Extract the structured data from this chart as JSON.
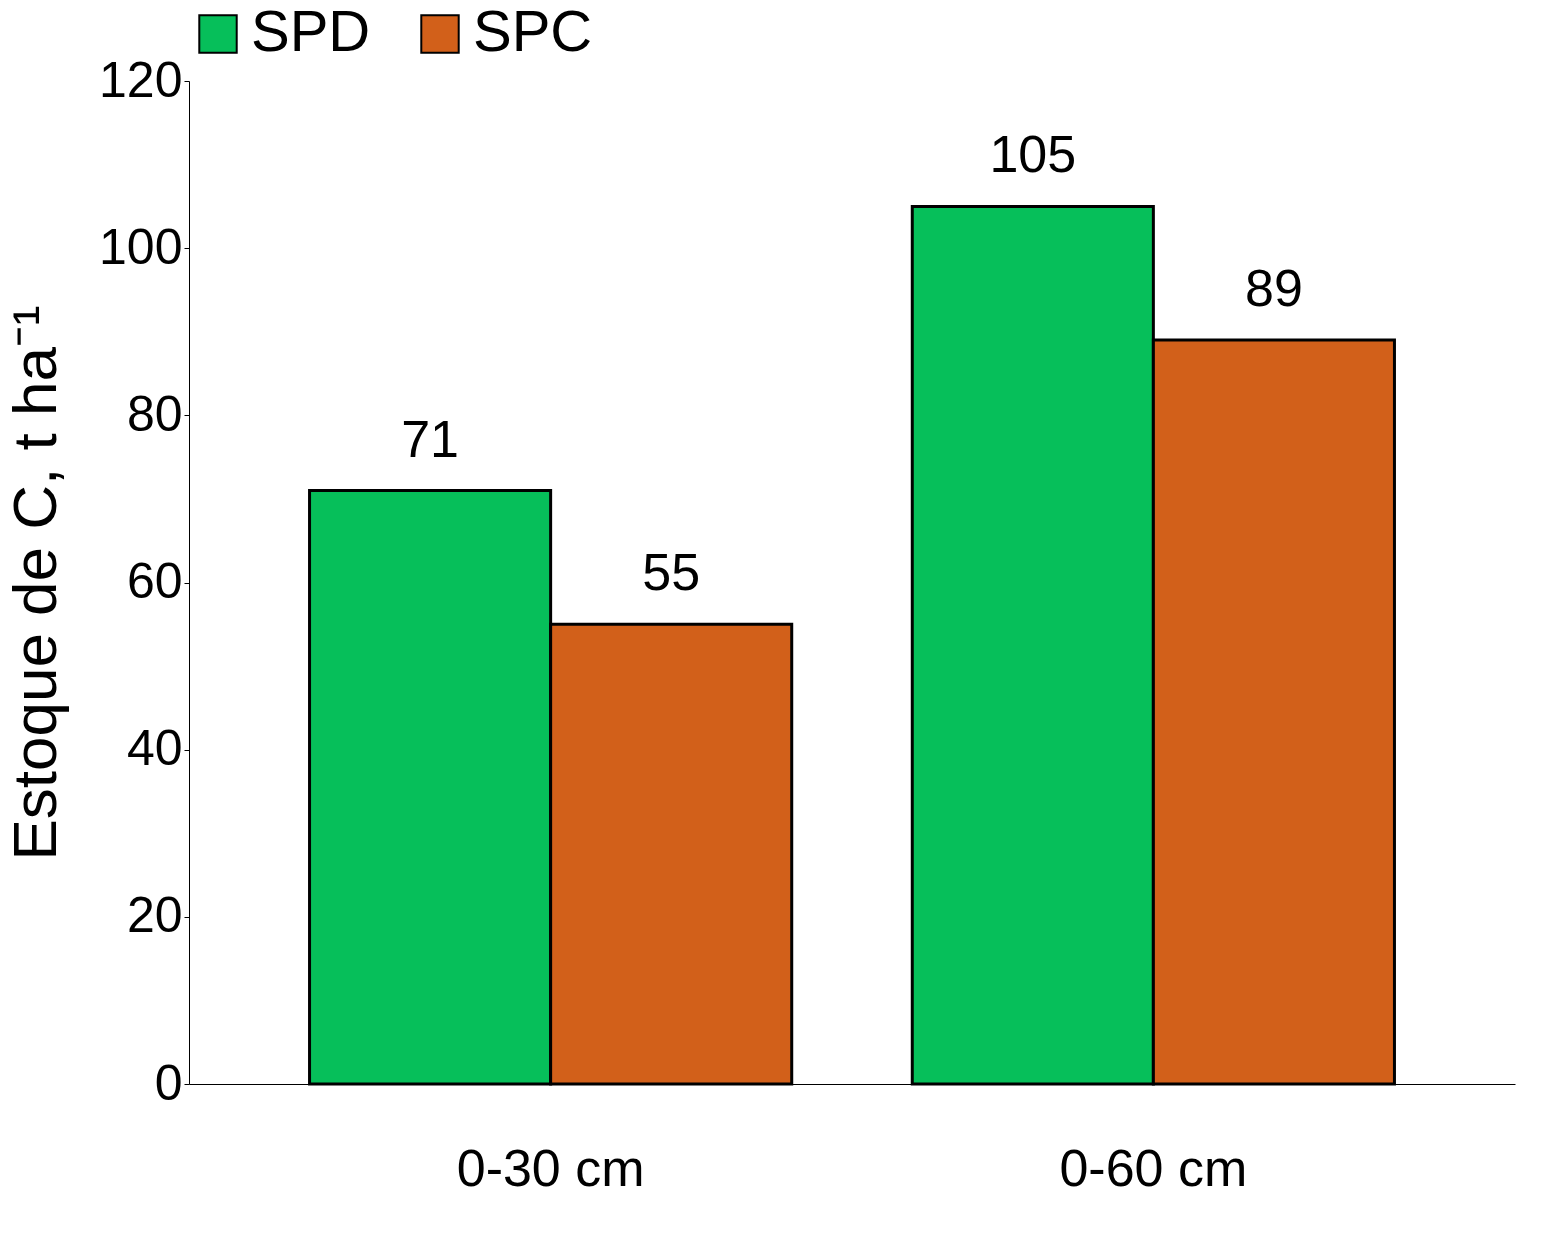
{
  "chart_data": {
    "type": "bar",
    "ylabel": "Estoque de C, t ha⁻¹",
    "categories": [
      "0-30 cm",
      "0-60 cm"
    ],
    "series": [
      {
        "name": "SPD",
        "color": "#06bf5a",
        "values": [
          71,
          105
        ]
      },
      {
        "name": "SPC",
        "color": "#d2601a",
        "values": [
          55,
          89
        ]
      }
    ],
    "ylim": [
      0,
      120
    ],
    "yticks": [
      0,
      20,
      40,
      60,
      80,
      100,
      120
    ],
    "data_labels": true,
    "grid": false,
    "legend": "top"
  }
}
